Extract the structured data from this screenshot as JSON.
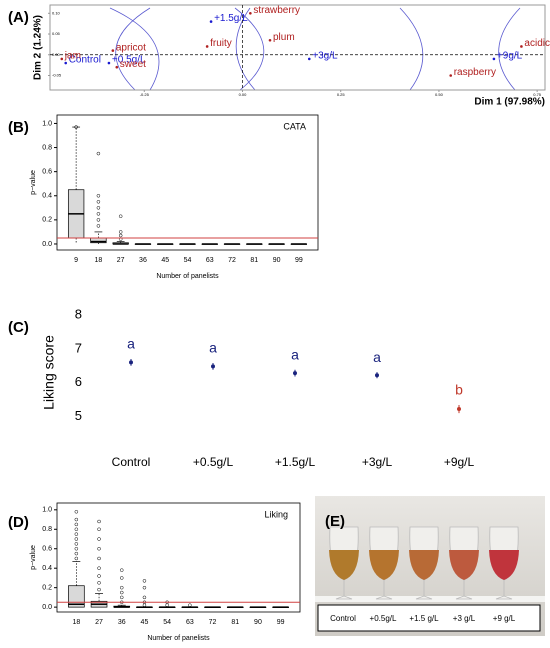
{
  "chart_data": [
    {
      "type": "scatter",
      "panel": "(A)",
      "xlabel": "Dim 1 (97.98%)",
      "ylabel": "Dim 2 (1.24%)",
      "xlim": [
        -0.49,
        0.77
      ],
      "ylim": [
        -0.085,
        0.12
      ],
      "xticks": [
        -0.25,
        {
          "value": 0,
          "label": "0.00"
        },
        0.25,
        {
          "value": 0.5,
          "label": "0.50"
        },
        0.75
      ],
      "yticks": [
        {
          "value": -0.05,
          "label": "-0.05"
        },
        {
          "value": 0,
          "label": "0.00"
        },
        0.05,
        {
          "value": 0.1,
          "label": "0.10"
        }
      ],
      "series": [
        {
          "color": "#1a1ad0",
          "labels": [
            "Control",
            "+0.5g/L",
            "+1.5g/L",
            "+3g/L",
            "+9g/L"
          ],
          "x": [
            -0.45,
            -0.34,
            -0.08,
            0.17,
            0.64
          ],
          "values": [
            -0.02,
            -0.02,
            0.08,
            -0.01,
            -0.01
          ]
        },
        {
          "color": "#b02020",
          "labels": [
            "jam",
            "apricot",
            "sweet",
            "fruity",
            "strawberry",
            "plum",
            "raspberry",
            "acidic"
          ],
          "x": [
            -0.46,
            -0.33,
            -0.32,
            -0.09,
            0.02,
            0.07,
            0.53,
            0.71
          ],
          "values": [
            -0.01,
            0.01,
            -0.03,
            0.02,
            0.1,
            0.035,
            -0.05,
            0.02
          ]
        }
      ]
    },
    {
      "type": "box",
      "panel": "(B)",
      "annotation": "CATA",
      "xlabel": "Number of panelists",
      "ylabel": "p−value",
      "ylim": [
        -0.05,
        1.07
      ],
      "yticks": [
        {
          "value": 0,
          "label": "0.0"
        },
        0.2,
        0.4,
        0.6,
        0.8,
        {
          "value": 1,
          "label": "1.0"
        }
      ],
      "refline": 0.05,
      "refcolor": "#d04040",
      "color": "#d9d9d9",
      "categories": [
        "9",
        "18",
        "27",
        "36",
        "45",
        "54",
        "63",
        "72",
        "81",
        "90",
        "99"
      ],
      "boxes": [
        {
          "min": 0,
          "q1": 0.05,
          "median": 0.25,
          "q3": 0.45,
          "max": 0.97,
          "outliers": [
            0.97
          ]
        },
        {
          "min": 0,
          "q1": 0.01,
          "median": 0.02,
          "q3": 0.05,
          "max": 0.1,
          "outliers": [
            0.15,
            0.2,
            0.25,
            0.3,
            0.35,
            0.4,
            0.75
          ]
        },
        {
          "min": 0,
          "q1": 0,
          "median": 0,
          "q3": 0.01,
          "max": 0.02,
          "outliers": [
            0.04,
            0.07,
            0.1,
            0.23
          ]
        },
        {
          "min": 0,
          "q1": 0,
          "median": 0,
          "q3": 0,
          "max": 0,
          "outliers": []
        },
        {
          "min": 0,
          "q1": 0,
          "median": 0,
          "q3": 0,
          "max": 0,
          "outliers": []
        },
        {
          "min": 0,
          "q1": 0,
          "median": 0,
          "q3": 0,
          "max": 0,
          "outliers": []
        },
        {
          "min": 0,
          "q1": 0,
          "median": 0,
          "q3": 0,
          "max": 0,
          "outliers": []
        },
        {
          "min": 0,
          "q1": 0,
          "median": 0,
          "q3": 0,
          "max": 0,
          "outliers": []
        },
        {
          "min": 0,
          "q1": 0,
          "median": 0,
          "q3": 0,
          "max": 0,
          "outliers": []
        },
        {
          "min": 0,
          "q1": 0,
          "median": 0,
          "q3": 0,
          "max": 0,
          "outliers": []
        },
        {
          "min": 0,
          "q1": 0,
          "median": 0,
          "q3": 0,
          "max": 0,
          "outliers": []
        }
      ]
    },
    {
      "type": "errorbar",
      "panel": "(C)",
      "ylabel": "Liking score",
      "ylim": [
        4.6,
        8
      ],
      "yticks": [
        5,
        6,
        7,
        8
      ],
      "categories": [
        "Control",
        "+0.5g/L",
        "+1.5g/L",
        "+3g/L",
        "+9g/L"
      ],
      "values": [
        6.6,
        6.48,
        6.28,
        6.22,
        5.22
      ],
      "errors": [
        0.1,
        0.1,
        0.1,
        0.09,
        0.12
      ],
      "letters": [
        "a",
        "a",
        "a",
        "a",
        "b"
      ],
      "colors": [
        "#1a237e",
        "#1a237e",
        "#1a237e",
        "#1a237e",
        "#c0392b"
      ]
    },
    {
      "type": "box",
      "panel": "(D)",
      "annotation": "Liking",
      "xlabel": "Number of panelists",
      "ylabel": "p−value",
      "ylim": [
        -0.05,
        1.07
      ],
      "yticks": [
        {
          "value": 0,
          "label": "0.0"
        },
        0.2,
        0.4,
        0.6,
        0.8,
        {
          "value": 1,
          "label": "1.0"
        }
      ],
      "refline": 0.05,
      "refcolor": "#d04040",
      "color": "#d9d9d9",
      "categories": [
        "18",
        "27",
        "36",
        "45",
        "54",
        "63",
        "72",
        "81",
        "90",
        "99"
      ],
      "boxes": [
        {
          "min": 0,
          "q1": 0,
          "median": 0.03,
          "q3": 0.22,
          "max": 0.47,
          "outliers": [
            0.5,
            0.55,
            0.6,
            0.65,
            0.7,
            0.75,
            0.8,
            0.85,
            0.9,
            0.98
          ]
        },
        {
          "min": 0,
          "q1": 0,
          "median": 0.03,
          "q3": 0.06,
          "max": 0.14,
          "outliers": [
            0.18,
            0.25,
            0.32,
            0.4,
            0.5,
            0.6,
            0.7,
            0.8,
            0.88
          ]
        },
        {
          "min": 0,
          "q1": 0,
          "median": 0,
          "q3": 0.01,
          "max": 0.02,
          "outliers": [
            0.05,
            0.1,
            0.15,
            0.2,
            0.3,
            0.38
          ]
        },
        {
          "min": 0,
          "q1": 0,
          "median": 0,
          "q3": 0,
          "max": 0,
          "outliers": [
            0.02,
            0.05,
            0.1,
            0.2,
            0.27
          ]
        },
        {
          "min": 0,
          "q1": 0,
          "median": 0,
          "q3": 0,
          "max": 0,
          "outliers": [
            0.02,
            0.05
          ]
        },
        {
          "min": 0,
          "q1": 0,
          "median": 0,
          "q3": 0,
          "max": 0,
          "outliers": [
            0.02
          ]
        },
        {
          "min": 0,
          "q1": 0,
          "median": 0,
          "q3": 0,
          "max": 0,
          "outliers": []
        },
        {
          "min": 0,
          "q1": 0,
          "median": 0,
          "q3": 0,
          "max": 0,
          "outliers": []
        },
        {
          "min": 0,
          "q1": 0,
          "median": 0,
          "q3": 0,
          "max": 0,
          "outliers": []
        },
        {
          "min": 0,
          "q1": 0,
          "median": 0,
          "q3": 0,
          "max": 0,
          "outliers": []
        }
      ]
    }
  ],
  "photo": {
    "panel": "(E)",
    "labels": [
      "Control",
      "+0.5g/L",
      "+1.5 g/L",
      "+3 g/L",
      "+9 g/L"
    ]
  }
}
